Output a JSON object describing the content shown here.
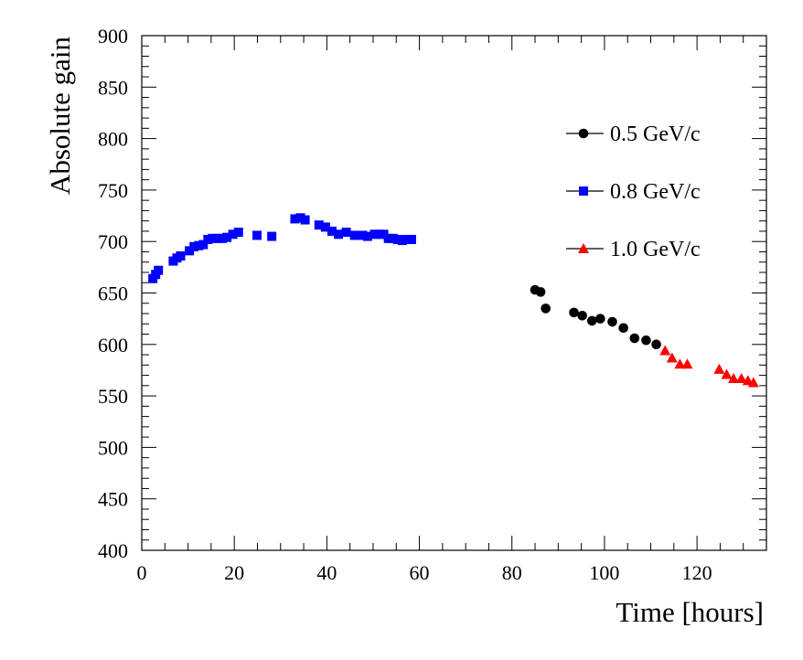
{
  "chart_data": {
    "type": "scatter",
    "title": "",
    "xlabel": "Time [hours]",
    "ylabel": "Absolute gain",
    "xlim": [
      0,
      135
    ],
    "ylim": [
      400,
      900
    ],
    "xticks": [
      0,
      20,
      40,
      60,
      80,
      100,
      120
    ],
    "yticks": [
      400,
      450,
      500,
      550,
      600,
      650,
      700,
      750,
      800,
      850,
      900
    ],
    "legend_position": "top-right",
    "grid": false,
    "series": [
      {
        "name": "0.5 GeV/c",
        "marker": "circle",
        "color": "#000000",
        "points": [
          [
            85.0,
            653
          ],
          [
            86.2,
            651
          ],
          [
            87.3,
            635
          ],
          [
            93.4,
            631
          ],
          [
            95.2,
            628
          ],
          [
            97.3,
            623
          ],
          [
            99.1,
            625
          ],
          [
            101.7,
            622
          ],
          [
            104.1,
            616
          ],
          [
            106.5,
            606
          ],
          [
            109.0,
            604
          ],
          [
            111.2,
            600
          ]
        ]
      },
      {
        "name": "0.8 GeV/c",
        "marker": "square",
        "color": "#0000ff",
        "points": [
          [
            2.4,
            664
          ],
          [
            3.0,
            668
          ],
          [
            3.6,
            672
          ],
          [
            6.8,
            681
          ],
          [
            7.6,
            684
          ],
          [
            8.4,
            686
          ],
          [
            10.3,
            691
          ],
          [
            11.3,
            695
          ],
          [
            12.3,
            696
          ],
          [
            13.3,
            697
          ],
          [
            14.3,
            702
          ],
          [
            15.3,
            703
          ],
          [
            16.4,
            703
          ],
          [
            17.4,
            703
          ],
          [
            18.4,
            704
          ],
          [
            19.7,
            707
          ],
          [
            20.9,
            709
          ],
          [
            24.9,
            706
          ],
          [
            28.1,
            705
          ],
          [
            33.1,
            722
          ],
          [
            34.3,
            723
          ],
          [
            35.3,
            721
          ],
          [
            38.3,
            716
          ],
          [
            39.7,
            714
          ],
          [
            41.1,
            710
          ],
          [
            42.5,
            707
          ],
          [
            44.2,
            709
          ],
          [
            46.0,
            706
          ],
          [
            47.7,
            706
          ],
          [
            48.8,
            705
          ],
          [
            50.3,
            707
          ],
          [
            51.3,
            707
          ],
          [
            52.3,
            707
          ],
          [
            53.3,
            703
          ],
          [
            54.3,
            703
          ],
          [
            55.3,
            702
          ],
          [
            56.3,
            701
          ],
          [
            57.3,
            702
          ],
          [
            58.3,
            702
          ]
        ]
      },
      {
        "name": "1.0 GeV/c",
        "marker": "triangle",
        "color": "#ff0000",
        "points": [
          [
            113.1,
            594
          ],
          [
            114.6,
            587
          ],
          [
            116.3,
            581
          ],
          [
            117.9,
            581
          ],
          [
            124.8,
            576
          ],
          [
            126.4,
            571
          ],
          [
            127.9,
            567
          ],
          [
            129.6,
            567
          ],
          [
            131.0,
            565
          ],
          [
            132.2,
            563
          ]
        ]
      }
    ]
  }
}
